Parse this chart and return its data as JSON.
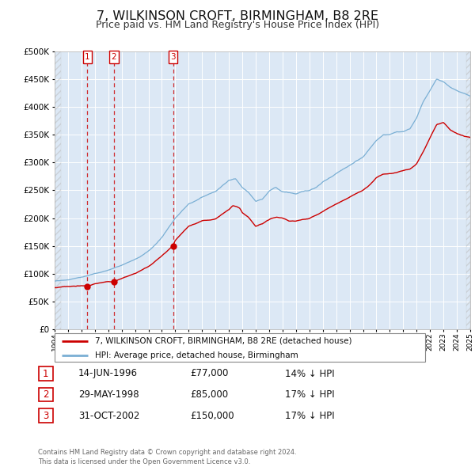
{
  "title": "7, WILKINSON CROFT, BIRMINGHAM, B8 2RE",
  "subtitle": "Price paid vs. HM Land Registry's House Price Index (HPI)",
  "plot_bg_color": "#dce8f5",
  "grid_color": "#ffffff",
  "ylim": [
    0,
    500000
  ],
  "yticks": [
    0,
    50000,
    100000,
    150000,
    200000,
    250000,
    300000,
    350000,
    400000,
    450000,
    500000
  ],
  "sale_dates": [
    1996.45,
    1998.41,
    2002.83
  ],
  "sale_prices": [
    77000,
    85000,
    150000
  ],
  "sale_labels": [
    "1",
    "2",
    "3"
  ],
  "sale_color": "#cc0000",
  "hpi_color": "#7aafd4",
  "legend_sale_label": "7, WILKINSON CROFT, BIRMINGHAM, B8 2RE (detached house)",
  "legend_hpi_label": "HPI: Average price, detached house, Birmingham",
  "table_entries": [
    {
      "num": "1",
      "date": "14-JUN-1996",
      "price": "£77,000",
      "hpi": "14% ↓ HPI"
    },
    {
      "num": "2",
      "date": "29-MAY-1998",
      "price": "£85,000",
      "hpi": "17% ↓ HPI"
    },
    {
      "num": "3",
      "date": "31-OCT-2002",
      "price": "£150,000",
      "hpi": "17% ↓ HPI"
    }
  ],
  "footer": "Contains HM Land Registry data © Crown copyright and database right 2024.\nThis data is licensed under the Open Government Licence v3.0.",
  "xmin": 1994,
  "xmax": 2025
}
